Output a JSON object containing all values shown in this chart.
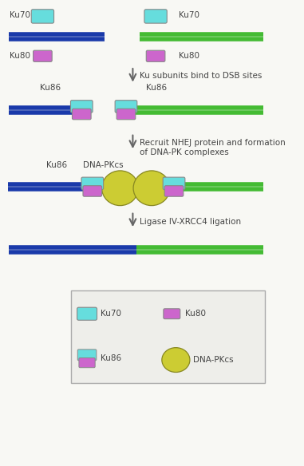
{
  "bg_color": "#f8f8f4",
  "blue_color": "#1a3aaa",
  "green_color": "#44bb33",
  "ku70_color": "#66dddd",
  "ku80_color": "#cc66cc",
  "dnapkcs_color": "#cccc33",
  "dnapkcs_edge": "#888822",
  "text_color": "#444444",
  "arrow_color": "#666666",
  "legend_bg": "#eeeeea",
  "legend_edge": "#aaaaaa",
  "step1_text": "Ku subunits bind to DSB sites",
  "step2_text1": "Recruit NHEJ protein and formation",
  "step2_text2": "of DNA-PK complexes",
  "step3_text": "Ligase IV-XRCC4 ligation",
  "label_ku70": "Ku70",
  "label_ku80": "Ku80",
  "label_ku86": "Ku86",
  "label_dnapkcs": "DNA-PKcs",
  "dna_lw": 4.0,
  "dna_sep": 0.09
}
